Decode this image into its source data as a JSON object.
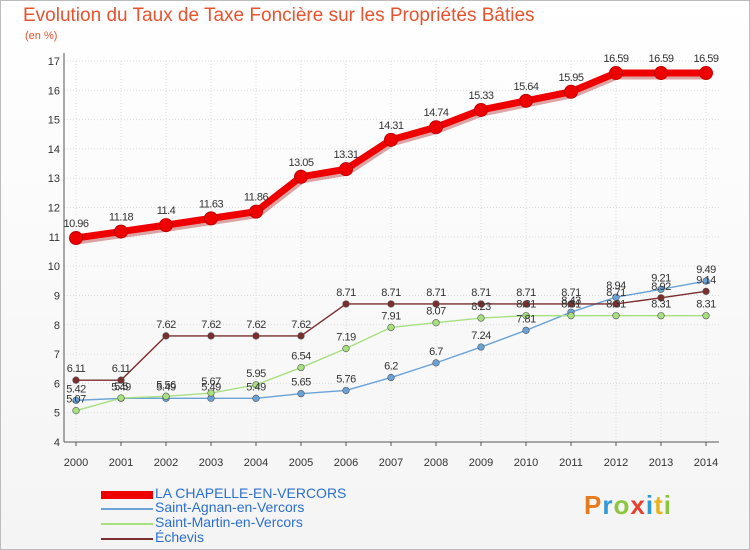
{
  "header": {
    "title": "Evolution du Taux de Taxe Foncière sur les Propriétés Bâties",
    "subtitle": "(en %)"
  },
  "logo": {
    "text": "Proxiti",
    "colors": [
      "#e87a1e",
      "#2e9ad6",
      "#8cc63e",
      "#e8402e",
      "#2e9ad6",
      "#e8b41e",
      "#8cc63e"
    ]
  },
  "chart_data": {
    "type": "line",
    "title": "Evolution du Taux de Taxe Foncière sur les Propriétés Bâties",
    "ylabel": "(en %)",
    "ylim": [
      4,
      17
    ],
    "yticks": [
      "4",
      "5",
      "6",
      "7",
      "8",
      "9",
      "10",
      "11",
      "12",
      "13",
      "14",
      "15",
      "16",
      "17"
    ],
    "categories": [
      "2000",
      "2001",
      "2002",
      "2003",
      "2004",
      "2005",
      "2006",
      "2007",
      "2008",
      "2009",
      "2010",
      "2011",
      "2012",
      "2013",
      "2014"
    ],
    "grid": true,
    "legend_position": "bottom-left",
    "series": [
      {
        "name": "LA CHAPELLE-EN-VERCORS",
        "color": "#ee0000",
        "values": [
          10.96,
          11.18,
          11.4,
          11.63,
          11.86,
          13.05,
          13.31,
          14.31,
          14.74,
          15.33,
          15.64,
          15.95,
          16.59,
          16.59,
          16.59
        ],
        "labels": [
          "10.96",
          "11.18",
          "11.4",
          "11.63",
          "11.86",
          "13.05",
          "13.31",
          "14.31",
          "14.74",
          "15.33",
          "15.64",
          "15.95",
          "16.59",
          "16.59",
          "16.59"
        ]
      },
      {
        "name": "Saint-Agnan-en-Vercors",
        "color": "#6aa2d8",
        "values": [
          5.42,
          5.49,
          5.49,
          5.49,
          5.49,
          5.65,
          5.76,
          6.2,
          6.7,
          7.24,
          7.81,
          8.43,
          8.94,
          9.21,
          9.49
        ],
        "labels": [
          "5.42",
          "5.49",
          "5.49",
          "5.49",
          "5.49",
          "5.65",
          "5.76",
          "6.2",
          "6.7",
          "7.24",
          "7.81",
          "8.43",
          "8.94",
          "9.21",
          "9.49"
        ]
      },
      {
        "name": "Saint-Martin-en-Vercors",
        "color": "#a8e080",
        "values": [
          5.07,
          5.5,
          5.56,
          5.67,
          5.95,
          6.54,
          7.19,
          7.91,
          8.07,
          8.23,
          8.31,
          8.31,
          8.31,
          8.31,
          8.31
        ],
        "labels": [
          "5.07",
          "5.5",
          "5.56",
          "5.67",
          "5.95",
          "6.54",
          "7.19",
          "7.91",
          "8.07",
          "8.23",
          "8.31",
          "8.31",
          "8.31",
          "8.31",
          "8.31"
        ]
      },
      {
        "name": "Échevis",
        "color": "#7a2e2e",
        "values": [
          6.11,
          6.11,
          7.62,
          7.62,
          7.62,
          7.62,
          8.71,
          8.71,
          8.71,
          8.71,
          8.71,
          8.71,
          8.71,
          8.92,
          9.14
        ],
        "labels": [
          "6.11",
          "6.11",
          "7.62",
          "7.62",
          "7.62",
          "7.62",
          "8.71",
          "8.71",
          "8.71",
          "8.71",
          "8.71",
          "8.71",
          "8.71",
          "8.92",
          "9.14"
        ]
      }
    ]
  }
}
